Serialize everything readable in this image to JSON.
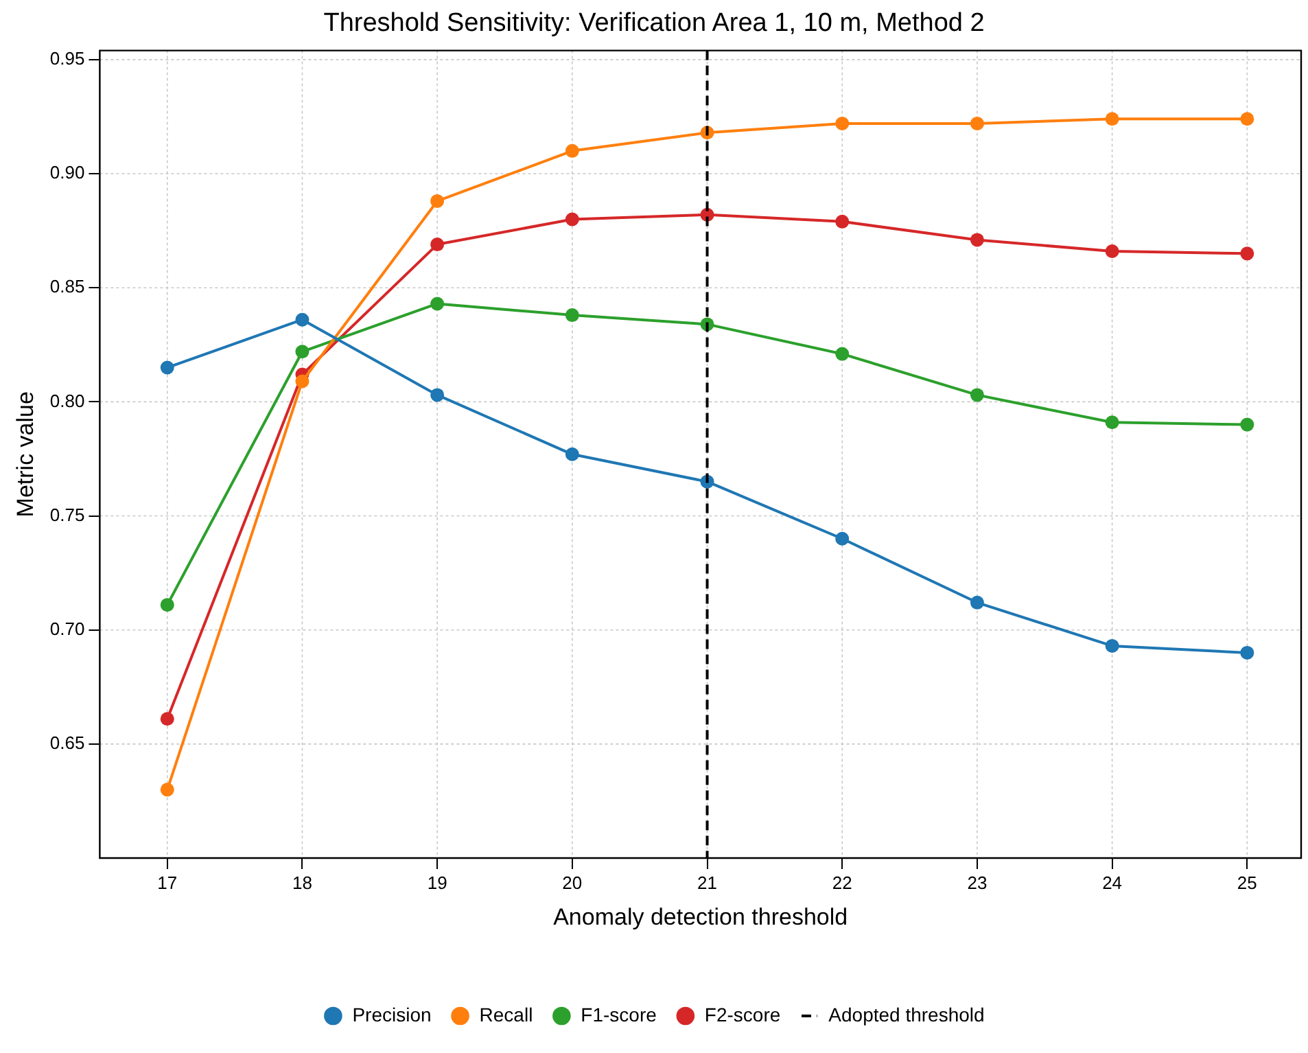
{
  "chart_data": {
    "type": "line",
    "title": "Threshold Sensitivity: Verification Area 1, 10 m, Method 2",
    "xlabel": "Anomaly detection threshold",
    "ylabel": "Metric value",
    "x": [
      17,
      18,
      19,
      20,
      21,
      22,
      23,
      24,
      25
    ],
    "xlim": [
      16.5,
      25.4
    ],
    "xticks": [
      17,
      18,
      19,
      20,
      21,
      22,
      23,
      24,
      25
    ],
    "ylim": [
      0.6,
      0.954
    ],
    "yticks": [
      {
        "value": 0.65,
        "label": "0.65"
      },
      {
        "value": 0.7,
        "label": "0.70"
      },
      {
        "value": 0.75,
        "label": "0.75"
      },
      {
        "value": 0.8,
        "label": "0.80"
      },
      {
        "value": 0.85,
        "label": "0.85"
      },
      {
        "value": 0.9,
        "label": "0.90"
      },
      {
        "value": 0.95,
        "label": "0.95"
      }
    ],
    "series": [
      {
        "name": "Precision",
        "color": "#1f77b4",
        "values": [
          0.815,
          0.836,
          0.803,
          0.777,
          0.765,
          0.74,
          0.712,
          0.693,
          0.69
        ]
      },
      {
        "name": "Recall",
        "color": "#ff7f0e",
        "values": [
          0.63,
          0.809,
          0.888,
          0.91,
          0.918,
          0.922,
          0.922,
          0.924,
          0.924
        ]
      },
      {
        "name": "F1-score",
        "color": "#2ca02c",
        "values": [
          0.711,
          0.822,
          0.843,
          0.838,
          0.834,
          0.821,
          0.803,
          0.791,
          0.79
        ]
      },
      {
        "name": "F2-score",
        "color": "#d62728",
        "values": [
          0.661,
          0.812,
          0.869,
          0.88,
          0.882,
          0.879,
          0.871,
          0.866,
          0.865
        ]
      }
    ],
    "ref_lines": [
      {
        "axis": "x",
        "value": 21,
        "label": "Adopted threshold",
        "color": "#000000",
        "line_style": "dashed"
      }
    ],
    "grid": true,
    "legend": "bottom",
    "marker": "circle",
    "line_style": "solid"
  }
}
